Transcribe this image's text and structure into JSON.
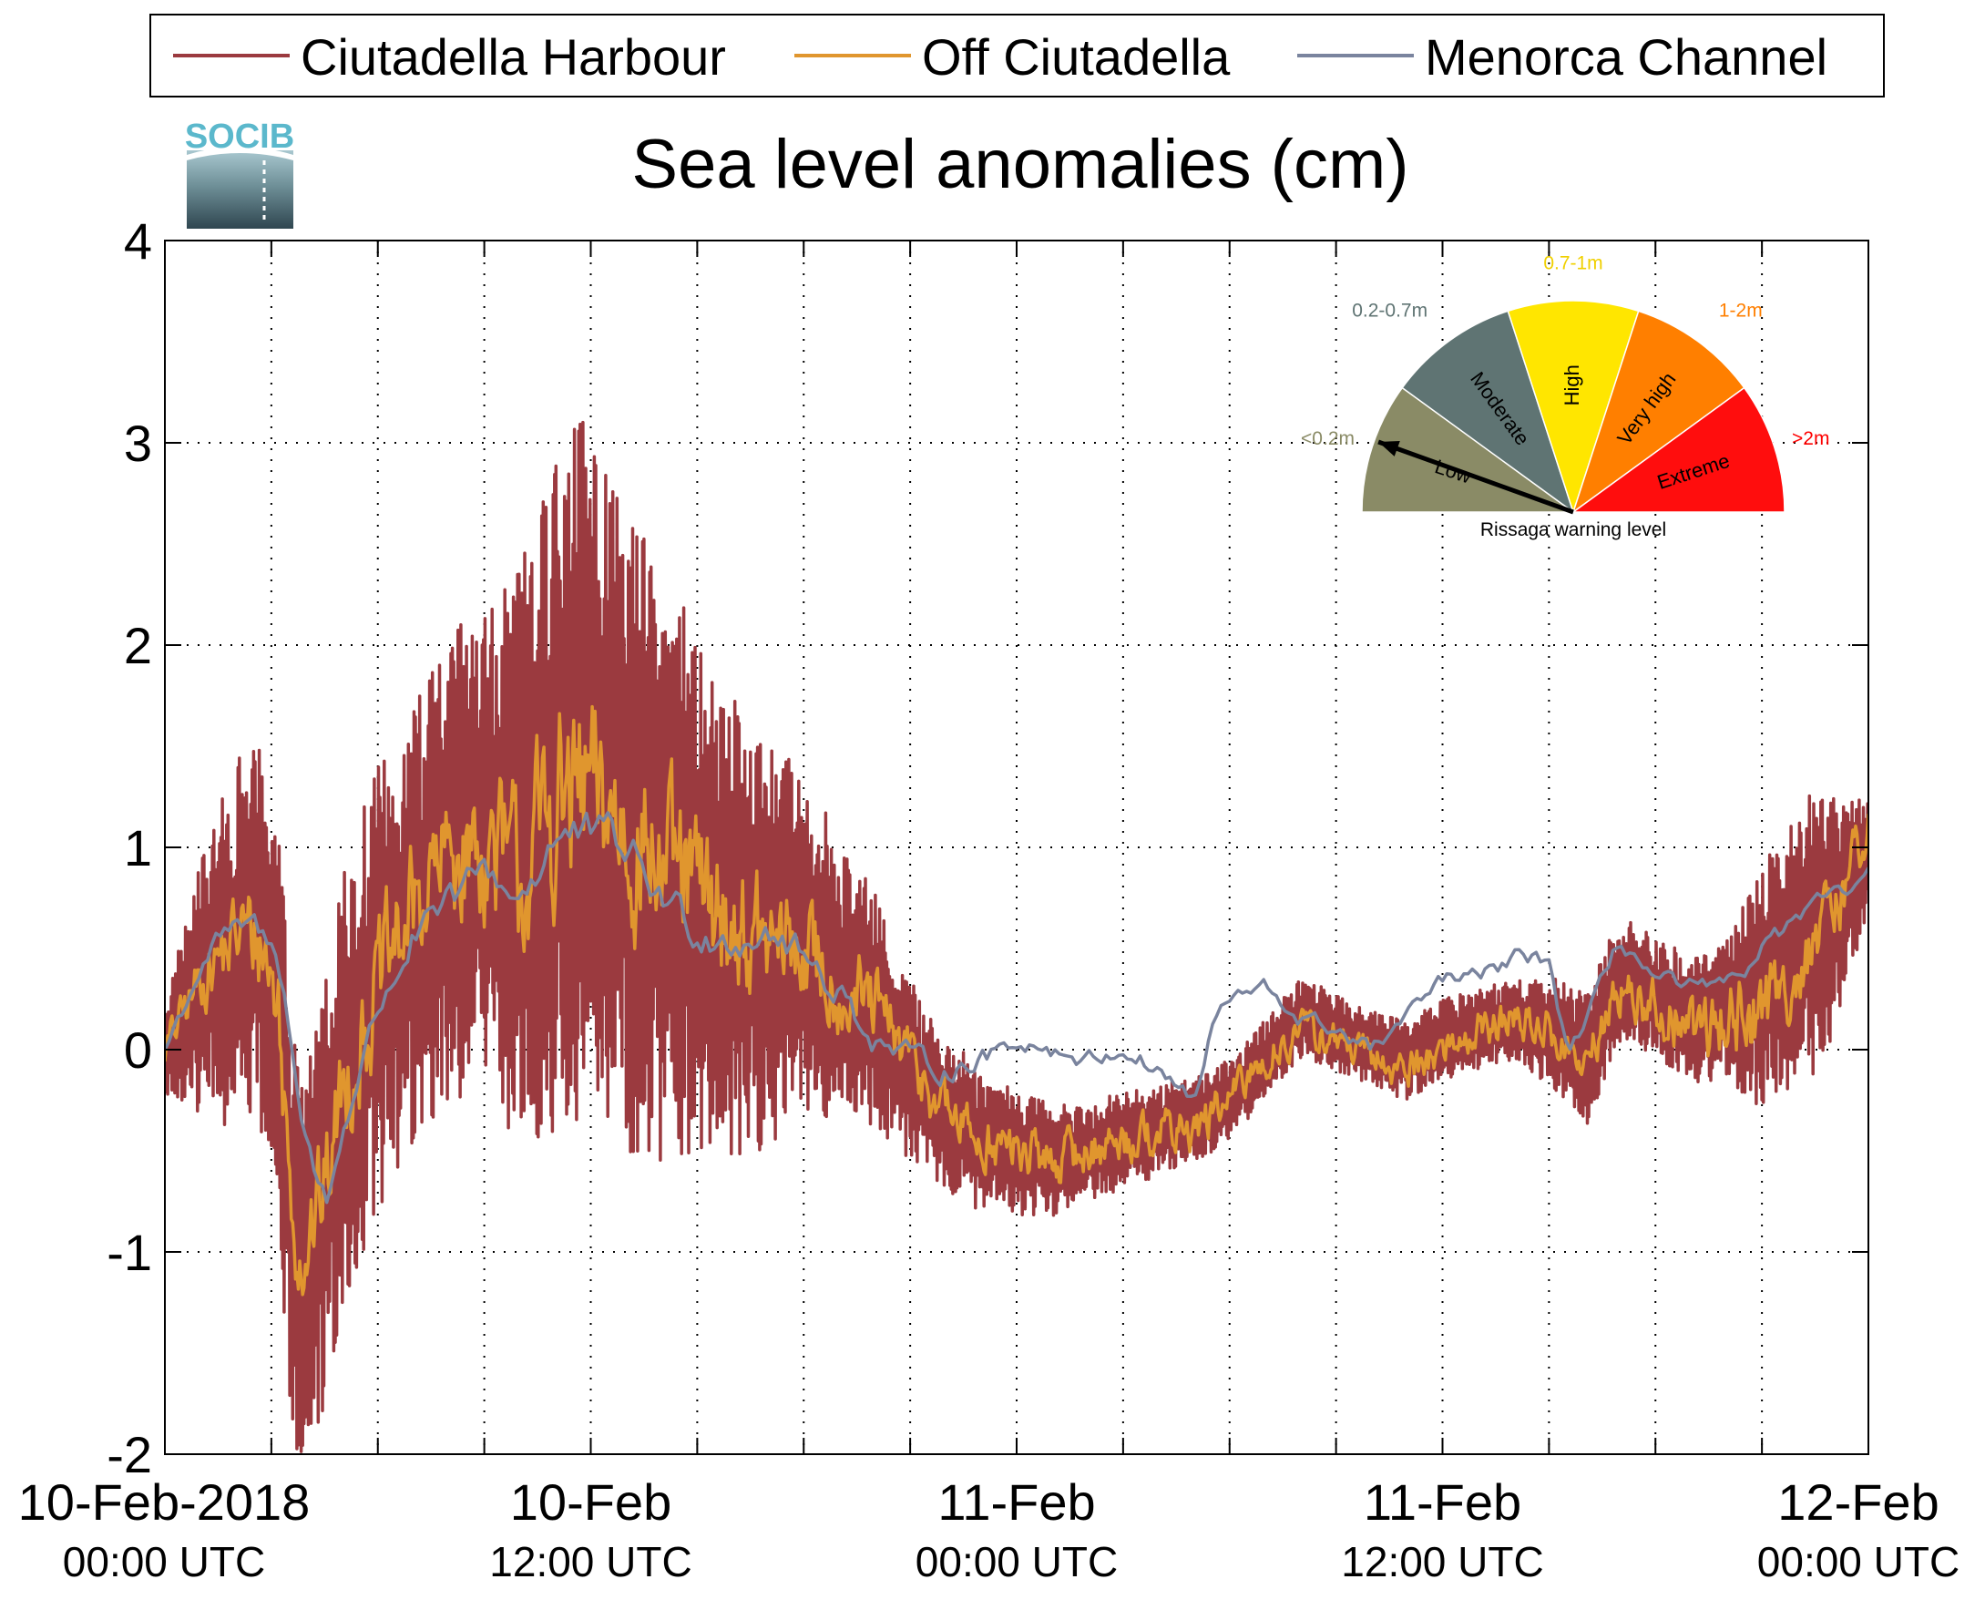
{
  "logo": {
    "text": "SOCIB"
  },
  "chart_data": {
    "type": "line",
    "title": "Sea level anomalies (cm)",
    "xlabel": "",
    "ylabel": "",
    "ylim": [
      -2,
      4
    ],
    "yticks": [
      -2,
      -1,
      0,
      1,
      2,
      3,
      4
    ],
    "xlim_hours": [
      0,
      48
    ],
    "x_minor_tick_hours": [
      3,
      6,
      9,
      12,
      15,
      18,
      21,
      24,
      27,
      30,
      33,
      36,
      39,
      42,
      45
    ],
    "xticks": [
      {
        "hour": 0,
        "line1": "10-Feb-2018",
        "line2": "00:00 UTC"
      },
      {
        "hour": 12,
        "line1": "10-Feb",
        "line2": "12:00 UTC"
      },
      {
        "hour": 24,
        "line1": "11-Feb",
        "line2": "00:00 UTC"
      },
      {
        "hour": 36,
        "line1": "11-Feb",
        "line2": "12:00 UTC"
      },
      {
        "hour": 48,
        "line1": "12-Feb",
        "line2": "00:00 UTC"
      }
    ],
    "grid": true,
    "legend_position": "top",
    "series": [
      {
        "name": "Ciutadella Harbour",
        "color": "#9b3a3f",
        "noise_amp": [
          [
            0,
            0.25
          ],
          [
            1.5,
            0.8
          ],
          [
            3,
            1.0
          ],
          [
            5,
            1.1
          ],
          [
            7,
            1.1
          ],
          [
            9,
            1.2
          ],
          [
            10.5,
            1.6
          ],
          [
            11.5,
            1.8
          ],
          [
            13,
            1.6
          ],
          [
            15,
            1.3
          ],
          [
            17,
            1.0
          ],
          [
            19,
            0.7
          ],
          [
            21,
            0.45
          ],
          [
            23,
            0.35
          ],
          [
            26,
            0.25
          ],
          [
            30,
            0.2
          ],
          [
            34,
            0.2
          ],
          [
            38,
            0.2
          ],
          [
            40,
            0.35
          ],
          [
            42,
            0.3
          ],
          [
            44,
            0.35
          ],
          [
            45,
            0.6
          ],
          [
            46.5,
            0.75
          ],
          [
            48,
            0.3
          ]
        ]
      },
      {
        "name": "Off Ciutadella",
        "color": "#e0962e",
        "noise_amp": [
          [
            0,
            0.1
          ],
          [
            3,
            0.3
          ],
          [
            7,
            0.35
          ],
          [
            9,
            0.4
          ],
          [
            11,
            0.55
          ],
          [
            13,
            0.5
          ],
          [
            15,
            0.4
          ],
          [
            18,
            0.3
          ],
          [
            22,
            0.15
          ],
          [
            28,
            0.12
          ],
          [
            34,
            0.1
          ],
          [
            40,
            0.12
          ],
          [
            42,
            0.15
          ],
          [
            45,
            0.25
          ],
          [
            48,
            0.15
          ]
        ]
      },
      {
        "name": "Menorca Channel",
        "color": "#7a849e",
        "noise_amp": [
          [
            0,
            0.06
          ],
          [
            6,
            0.1
          ],
          [
            12,
            0.15
          ],
          [
            18,
            0.12
          ],
          [
            24,
            0.06
          ],
          [
            30,
            0.06
          ],
          [
            36,
            0.06
          ],
          [
            42,
            0.06
          ],
          [
            48,
            0.06
          ]
        ]
      }
    ],
    "baselines": [
      {
        "series": "Ciutadella Harbour",
        "points": [
          [
            0,
            0
          ],
          [
            1,
            0.3
          ],
          [
            1.5,
            0.4
          ],
          [
            2.2,
            0.6
          ],
          [
            2.8,
            0.55
          ],
          [
            3.2,
            0.2
          ],
          [
            3.5,
            -0.7
          ],
          [
            3.8,
            -1.1
          ],
          [
            4.2,
            -0.9
          ],
          [
            4.5,
            -0.7
          ],
          [
            5,
            -0.2
          ],
          [
            6,
            0.3
          ],
          [
            7,
            0.6
          ],
          [
            8,
            0.9
          ],
          [
            9,
            1.0
          ],
          [
            10,
            0.9
          ],
          [
            10.5,
            1.1
          ],
          [
            11,
            1.3
          ],
          [
            12,
            1.4
          ],
          [
            13,
            1.1
          ],
          [
            14,
            0.9
          ],
          [
            15,
            0.8
          ],
          [
            16,
            0.6
          ],
          [
            17,
            0.5
          ],
          [
            18,
            0.55
          ],
          [
            19,
            0.35
          ],
          [
            20,
            0.2
          ],
          [
            21,
            -0.1
          ],
          [
            22,
            -0.3
          ],
          [
            23,
            -0.45
          ],
          [
            24,
            -0.5
          ],
          [
            25,
            -0.55
          ],
          [
            26,
            -0.5
          ],
          [
            27,
            -0.45
          ],
          [
            28,
            -0.4
          ],
          [
            29,
            -0.35
          ],
          [
            30,
            -0.25
          ],
          [
            31,
            -0.05
          ],
          [
            32,
            0.15
          ],
          [
            33,
            0.1
          ],
          [
            34,
            0.0
          ],
          [
            35,
            -0.05
          ],
          [
            36,
            0.05
          ],
          [
            37,
            0.1
          ],
          [
            38,
            0.15
          ],
          [
            39,
            0.1
          ],
          [
            40,
            -0.05
          ],
          [
            41,
            0.35
          ],
          [
            42,
            0.25
          ],
          [
            43,
            0.15
          ],
          [
            44,
            0.2
          ],
          [
            44.5,
            0.25
          ],
          [
            45,
            0.3
          ],
          [
            46,
            0.5
          ],
          [
            47,
            0.65
          ],
          [
            48,
            1.0
          ]
        ]
      },
      {
        "series": "Off Ciutadella",
        "points": [
          [
            0,
            0
          ],
          [
            1,
            0.35
          ],
          [
            1.5,
            0.45
          ],
          [
            2.2,
            0.6
          ],
          [
            2.8,
            0.5
          ],
          [
            3.2,
            0.2
          ],
          [
            3.5,
            -0.6
          ],
          [
            3.8,
            -1.0
          ],
          [
            4.2,
            -0.85
          ],
          [
            4.5,
            -0.7
          ],
          [
            5,
            -0.2
          ],
          [
            6,
            0.3
          ],
          [
            7,
            0.7
          ],
          [
            8,
            0.95
          ],
          [
            9,
            1.0
          ],
          [
            10,
            0.85
          ],
          [
            10.5,
            1.0
          ],
          [
            11,
            1.2
          ],
          [
            12,
            1.25
          ],
          [
            13,
            1.1
          ],
          [
            14,
            0.9
          ],
          [
            15,
            0.8
          ],
          [
            16,
            0.6
          ],
          [
            17,
            0.5
          ],
          [
            18,
            0.5
          ],
          [
            19,
            0.3
          ],
          [
            20,
            0.2
          ],
          [
            21,
            -0.05
          ],
          [
            22,
            -0.3
          ],
          [
            23,
            -0.45
          ],
          [
            24,
            -0.5
          ],
          [
            25,
            -0.55
          ],
          [
            26,
            -0.5
          ],
          [
            27,
            -0.45
          ],
          [
            28,
            -0.4
          ],
          [
            29,
            -0.4
          ],
          [
            30,
            -0.25
          ],
          [
            31,
            -0.05
          ],
          [
            32,
            0.1
          ],
          [
            33,
            0.05
          ],
          [
            34,
            -0.05
          ],
          [
            35,
            -0.1
          ],
          [
            36,
            0.0
          ],
          [
            37,
            0.1
          ],
          [
            38,
            0.15
          ],
          [
            39,
            0.1
          ],
          [
            40,
            -0.1
          ],
          [
            41,
            0.3
          ],
          [
            42,
            0.2
          ],
          [
            43,
            0.1
          ],
          [
            44,
            0.15
          ],
          [
            45,
            0.2
          ],
          [
            46,
            0.4
          ],
          [
            47,
            0.65
          ],
          [
            48,
            1.15
          ]
        ]
      },
      {
        "series": "Menorca Channel",
        "points": [
          [
            0,
            0
          ],
          [
            1,
            0.4
          ],
          [
            1.5,
            0.55
          ],
          [
            2.5,
            0.62
          ],
          [
            3,
            0.5
          ],
          [
            3.4,
            0.3
          ],
          [
            3.8,
            -0.3
          ],
          [
            4.2,
            -0.6
          ],
          [
            4.6,
            -0.75
          ],
          [
            5,
            -0.4
          ],
          [
            5.5,
            -0.1
          ],
          [
            6,
            0.2
          ],
          [
            7,
            0.55
          ],
          [
            8,
            0.7
          ],
          [
            9,
            0.9
          ],
          [
            10,
            0.75
          ],
          [
            11,
            1.05
          ],
          [
            12,
            1.05
          ],
          [
            13,
            1.0
          ],
          [
            14,
            0.75
          ],
          [
            15,
            0.6
          ],
          [
            16,
            0.55
          ],
          [
            17,
            0.6
          ],
          [
            18,
            0.45
          ],
          [
            19,
            0.3
          ],
          [
            20,
            0.05
          ],
          [
            21,
            -0.05
          ],
          [
            22,
            -0.1
          ],
          [
            23,
            -0.05
          ],
          [
            24,
            0.05
          ],
          [
            25,
            0.0
          ],
          [
            26,
            -0.05
          ],
          [
            27,
            0.0
          ],
          [
            28,
            -0.1
          ],
          [
            29,
            -0.25
          ],
          [
            29.6,
            0.15
          ],
          [
            30,
            0.25
          ],
          [
            31,
            0.3
          ],
          [
            32,
            0.15
          ],
          [
            33,
            0.1
          ],
          [
            34,
            0.0
          ],
          [
            35,
            0.15
          ],
          [
            36,
            0.35
          ],
          [
            37,
            0.35
          ],
          [
            38,
            0.45
          ],
          [
            39,
            0.45
          ],
          [
            39.5,
            0.0
          ],
          [
            40,
            0.1
          ],
          [
            41,
            0.55
          ],
          [
            42,
            0.35
          ],
          [
            43,
            0.3
          ],
          [
            44,
            0.3
          ],
          [
            45,
            0.5
          ],
          [
            46,
            0.65
          ],
          [
            47,
            0.75
          ],
          [
            48,
            0.85
          ]
        ]
      }
    ],
    "gauge": {
      "caption": "Rissaga warning level",
      "needle_category": "Low",
      "categories": [
        {
          "label": "Low",
          "range": "<0.2m",
          "color": "#8a8b66",
          "range_color": "#8a8b66"
        },
        {
          "label": "Moderate",
          "range": "0.2-0.7m",
          "color": "#5f7473",
          "range_color": "#5f7473"
        },
        {
          "label": "High",
          "range": "0.7-1m",
          "color": "#ffe600",
          "range_color": "#f0d000"
        },
        {
          "label": "Very high",
          "range": "1-2m",
          "color": "#ff7f00",
          "range_color": "#ff7f00"
        },
        {
          "label": "Extreme",
          "range": ">2m",
          "color": "#ff0d0d",
          "range_color": "#ff0000"
        }
      ]
    }
  }
}
